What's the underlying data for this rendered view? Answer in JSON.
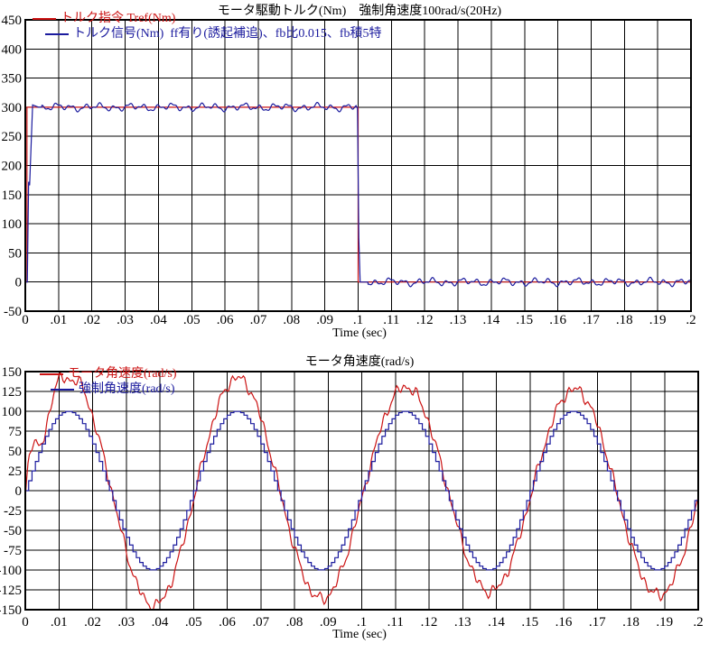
{
  "colors": {
    "red": "#cc1414",
    "blue": "#1b1b9e",
    "grid": "#000000",
    "background": "#ffffff",
    "text": "#000000"
  },
  "chart_data": [
    {
      "id": "torque",
      "type": "line",
      "title": "モータ駆動トルク(Nm)　強制角速度100rad/s(20Hz)",
      "xlabel": "Time (sec)",
      "grid": true,
      "legend_position": "top-left-inside",
      "x": {
        "min": 0,
        "max": 0.2,
        "step": 0.01,
        "tick_labels": [
          "0",
          ".01",
          ".02",
          ".03",
          ".04",
          ".05",
          ".06",
          ".07",
          ".08",
          ".09",
          ".1",
          ".11",
          ".12",
          ".13",
          ".14",
          ".15",
          ".16",
          ".17",
          ".18",
          ".19",
          ".2"
        ]
      },
      "y": {
        "min": -50,
        "max": 450,
        "step": 50,
        "tick_labels": [
          "450",
          "400",
          "350",
          "300",
          "250",
          "200",
          "150",
          "100",
          "50",
          "0",
          "-50"
        ]
      },
      "legend": [
        {
          "label": "トルク指令 Tref(Nm)",
          "color": "red"
        },
        {
          "label": "トルク信号(Nm)  ff有り(誘起補追)、fb比0.015、fb積5特",
          "color": "blue"
        }
      ],
      "series": [
        {
          "name": "トルク指令 Tref(Nm)",
          "color": "red",
          "kind": "polyline",
          "points_tv": [
            [
              0,
              0
            ],
            [
              0.0005,
              0
            ],
            [
              0.0005,
              300
            ],
            [
              0.1,
              300
            ],
            [
              0.1,
              0
            ],
            [
              0.2,
              0
            ]
          ],
          "description": "Step torque command: 300 Nm from t=0 to t=0.1 s, then 0 Nm until t=0.2 s"
        },
        {
          "name": "トルク信号(Nm) ff有り(誘起補追)、fb比0.015、fb積5特",
          "color": "blue",
          "kind": "noisy_piecewise",
          "dt": 0.0001,
          "base_tv": [
            [
              0,
              0
            ],
            [
              0.0006,
              0
            ],
            [
              0.001,
              172
            ],
            [
              0.0013,
              166
            ],
            [
              0.0022,
              304
            ],
            [
              0.004,
              300
            ],
            [
              0.0998,
              300
            ],
            [
              0.1002,
              76
            ],
            [
              0.1006,
              0
            ],
            [
              0.2,
              0
            ]
          ],
          "noise": {
            "amps": [
              4,
              2.5,
              1.8
            ],
            "freqs": [
              230,
              90,
              520
            ],
            "phases": [
              0.5,
              2.1,
              4.0
            ]
          },
          "gates": [
            [
              0.005,
              0.0995
            ],
            [
              0.103,
              0.2
            ]
          ],
          "description": "Measured torque signal tracking the 300 Nm step with about ±5 Nm ripple"
        }
      ]
    },
    {
      "id": "speed",
      "type": "line",
      "title": "モータ角速度(rad/s)",
      "xlabel": "Time (sec)",
      "grid": true,
      "legend_position": "top-left-inside",
      "x": {
        "min": 0,
        "max": 0.2,
        "step": 0.01,
        "tick_labels": [
          "0",
          ".01",
          ".02",
          ".03",
          ".04",
          ".05",
          ".06",
          ".07",
          ".08",
          ".09",
          ".1",
          ".11",
          ".12",
          ".13",
          ".14",
          ".15",
          ".16",
          ".17",
          ".18",
          ".19",
          ".2"
        ]
      },
      "y": {
        "min": -150,
        "max": 150,
        "step": 25,
        "tick_labels": [
          "150",
          "125",
          "100",
          "75",
          "50",
          "25",
          "0",
          "-25",
          "-50",
          "-75",
          "-100",
          "-125",
          "-150"
        ]
      },
      "legend": [
        {
          "label": "モータ角速度(rad/s)",
          "color": "red"
        },
        {
          "label": "強制角速度(rad/s)",
          "color": "blue"
        }
      ],
      "series": [
        {
          "name": "モータ角速度(rad/s)",
          "color": "red",
          "kind": "sine",
          "freq_hz": 20,
          "amp": 136,
          "phase": -0.08,
          "amp_mod": {
            "amp": 9,
            "freq": 4.3,
            "phase": 0.7
          },
          "noise": {
            "amps": [
              4,
              3,
              3
            ],
            "freqs": [
              310,
              170,
              530
            ],
            "phases": [
              1.0,
              2.7,
              4.4
            ]
          },
          "transient": {
            "amp": 55,
            "decay": 0.005,
            "freq": 130
          },
          "dt": 0.0004,
          "draw": "line",
          "description": "Motor angular velocity: noisy 20 Hz sine, peaks about ±125 to ±150 rad/s"
        },
        {
          "name": "強制角速度(rad/s)",
          "color": "blue",
          "kind": "sine",
          "freq_hz": 20,
          "amp": 100,
          "phase": 0,
          "dt": 0.001,
          "draw": "stairs",
          "description": "Forced angular velocity: sampled (staircase) 20 Hz sine of ±100 rad/s"
        }
      ]
    }
  ]
}
